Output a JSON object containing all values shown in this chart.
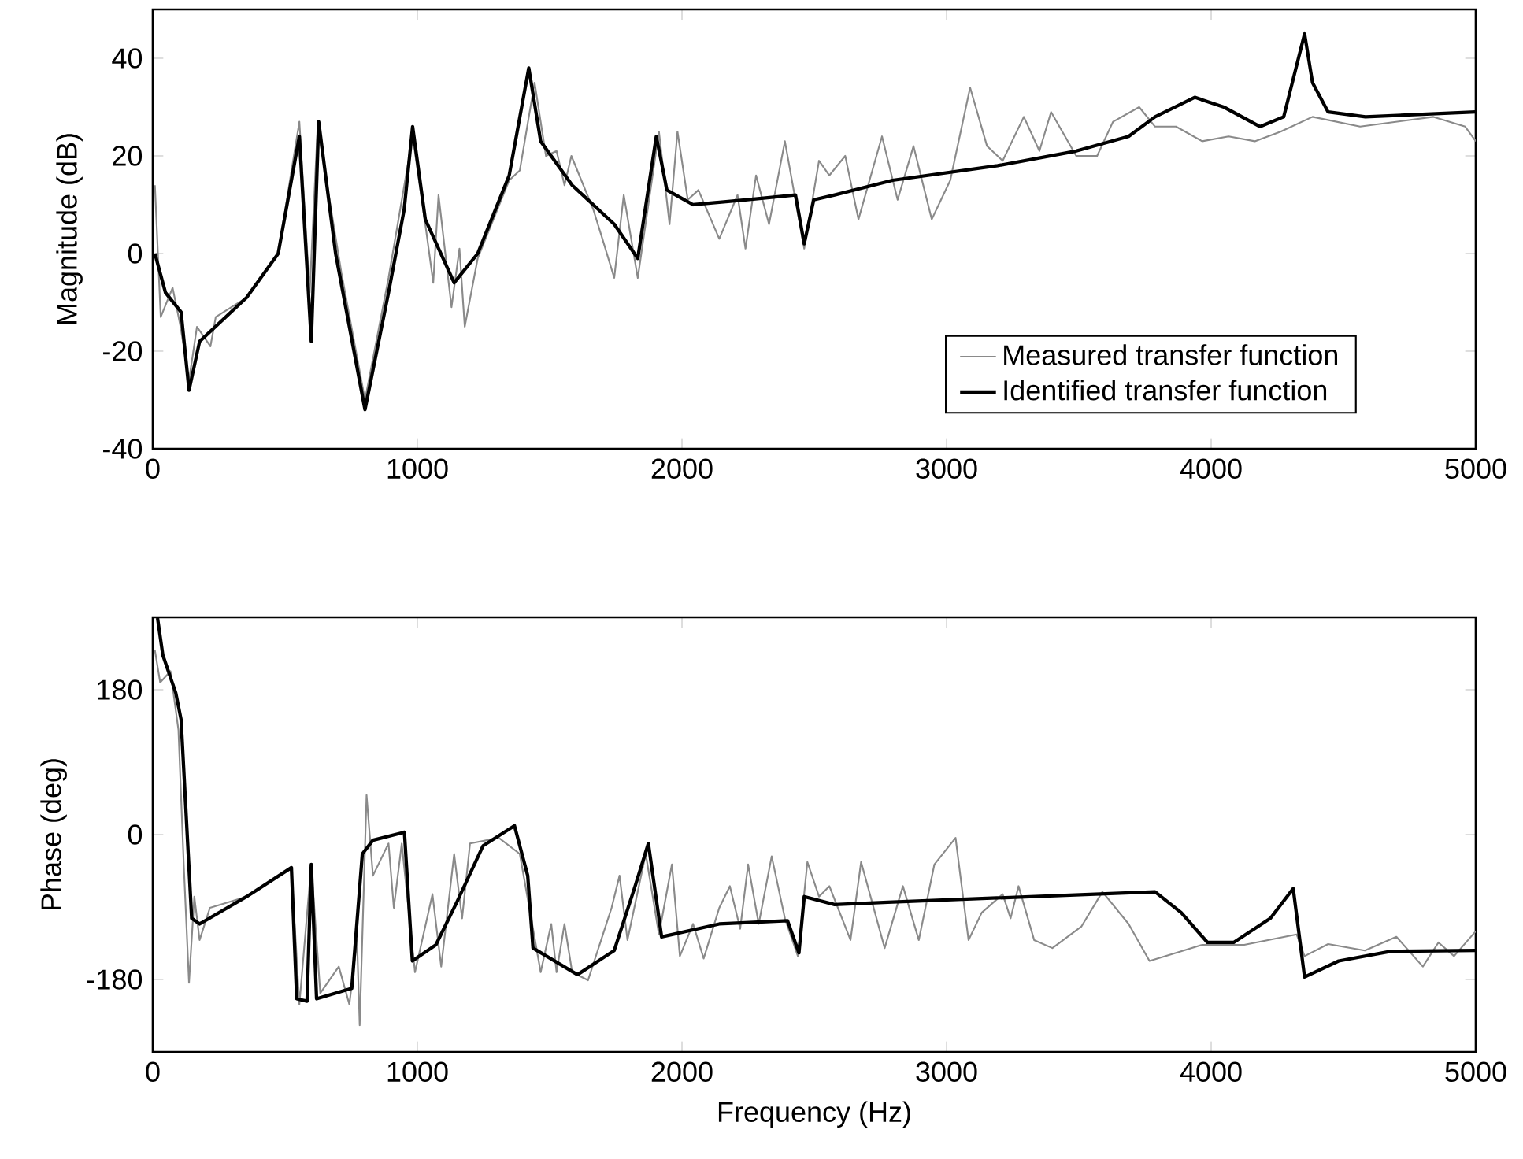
{
  "chart_data": [
    {
      "type": "line",
      "ylabel": "Magnitude (dB)",
      "xlim": [
        0,
        5000
      ],
      "ylim": [
        -40,
        50
      ],
      "xticks": [
        0,
        1000,
        2000,
        3000,
        4000,
        5000
      ],
      "yticks": [
        -40,
        -20,
        0,
        20,
        40
      ],
      "grid": false,
      "legend": "bottom right",
      "series": [
        {
          "name": "Measured transfer function",
          "color": "#8a8a8a",
          "x": [
            8,
            30,
            75,
            105,
            137,
            167,
            218,
            238,
            355,
            474,
            554,
            593,
            623,
            713,
            802,
            891,
            982,
            1030,
            1060,
            1080,
            1129,
            1159,
            1179,
            1228,
            1347,
            1387,
            1443,
            1486,
            1526,
            1556,
            1582,
            1665,
            1705,
            1744,
            1780,
            1833,
            1913,
            1953,
            1983,
            2022,
            2062,
            2141,
            2210,
            2240,
            2280,
            2329,
            2389,
            2462,
            2518,
            2557,
            2617,
            2667,
            2756,
            2815,
            2875,
            2944,
            3014,
            3089,
            3153,
            3212,
            3292,
            3351,
            3395,
            3490,
            3569,
            3629,
            3728,
            3788,
            3867,
            3966,
            4066,
            4165,
            4264,
            4383,
            4563,
            4840,
            4960,
            5000
          ],
          "values": [
            14,
            -13,
            -7,
            -15,
            -26,
            -15,
            -19,
            -13,
            -9,
            0,
            27,
            -8,
            26,
            -4,
            -30,
            -5,
            24,
            6,
            -6,
            12,
            -11,
            1,
            -15,
            -1,
            15,
            17,
            35,
            20,
            21,
            14,
            20,
            9,
            2,
            -5,
            12,
            -5,
            25,
            6,
            25,
            11,
            13,
            3,
            12,
            1,
            16,
            6,
            23,
            1,
            19,
            16,
            20,
            7,
            24,
            11,
            22,
            7,
            15,
            34,
            22,
            19,
            28,
            21,
            29,
            20,
            20,
            27,
            30,
            26,
            26,
            23,
            24,
            23,
            25,
            28,
            26,
            28,
            26,
            23
          ]
        },
        {
          "name": "Identified transfer function",
          "color": "#000000",
          "x": [
            8,
            48,
            107,
            137,
            177,
            355,
            474,
            554,
            599,
            627,
            691,
            802,
            891,
            950,
            982,
            1030,
            1139,
            1228,
            1347,
            1421,
            1466,
            1585,
            1744,
            1833,
            1903,
            1943,
            2042,
            2240,
            2429,
            2462,
            2498,
            2577,
            2796,
            3193,
            3490,
            3688,
            3788,
            3938,
            4048,
            4185,
            4274,
            4353,
            4383,
            4442,
            4583,
            5000
          ],
          "values": [
            0,
            -8,
            -12,
            -28,
            -18,
            -9,
            0,
            24,
            -18,
            27,
            0,
            -32,
            -8,
            9,
            26,
            7,
            -6,
            0,
            16,
            38,
            23,
            14,
            6,
            -1,
            24,
            13,
            10,
            11,
            12,
            2,
            11,
            12,
            15,
            18,
            21,
            24,
            28,
            32,
            30,
            26,
            28,
            45,
            35,
            29,
            28,
            29
          ]
        }
      ]
    },
    {
      "type": "line",
      "xlabel": "Frequency (Hz)",
      "ylabel": "Phase (deg)",
      "xlim": [
        0,
        5000
      ],
      "ylim": [
        -270,
        270
      ],
      "xticks": [
        0,
        1000,
        2000,
        3000,
        4000,
        5000
      ],
      "yticks": [
        -180,
        0,
        180
      ],
      "grid": false,
      "series": [
        {
          "color": "#8a8a8a",
          "x": [
            8,
            28,
            67,
            97,
            117,
            137,
            157,
            177,
            216,
            355,
            524,
            554,
            599,
            633,
            703,
            743,
            772,
            782,
            808,
            832,
            891,
            911,
            941,
            991,
            1057,
            1090,
            1139,
            1169,
            1199,
            1308,
            1387,
            1466,
            1506,
            1526,
            1556,
            1585,
            1645,
            1734,
            1764,
            1794,
            1863,
            1913,
            1962,
            1992,
            2042,
            2082,
            2141,
            2181,
            2220,
            2250,
            2290,
            2339,
            2389,
            2438,
            2474,
            2518,
            2557,
            2637,
            2677,
            2766,
            2835,
            2895,
            2954,
            3034,
            3083,
            3133,
            3212,
            3242,
            3272,
            3331,
            3400,
            3510,
            3589,
            3688,
            3767,
            3867,
            3966,
            4125,
            4323,
            4353,
            4442,
            4581,
            4700,
            4800,
            4859,
            4918,
            5000
          ],
          "values": [
            229,
            189,
            203,
            130,
            -37,
            -184,
            -77,
            -131,
            -91,
            -77,
            -41,
            -211,
            -37,
            -197,
            -164,
            -211,
            -131,
            -237,
            49,
            -51,
            -11,
            -91,
            -11,
            -171,
            -74,
            -164,
            -24,
            -104,
            -11,
            -4,
            -24,
            -171,
            -111,
            -171,
            -111,
            -171,
            -181,
            -91,
            -51,
            -131,
            -24,
            -124,
            -37,
            -151,
            -111,
            -154,
            -91,
            -64,
            -117,
            -37,
            -111,
            -27,
            -104,
            -151,
            -34,
            -77,
            -64,
            -131,
            -34,
            -141,
            -64,
            -131,
            -37,
            -4,
            -131,
            -97,
            -74,
            -104,
            -64,
            -131,
            -141,
            -114,
            -71,
            -111,
            -157,
            -147,
            -137,
            -137,
            -124,
            -151,
            -136,
            -144,
            -127,
            -164,
            -134,
            -151,
            -120
          ]
        },
        {
          "color": "#000000",
          "x": [
            18,
            38,
            87,
            107,
            147,
            177,
            355,
            524,
            544,
            583,
            599,
            619,
            752,
            792,
            832,
            951,
            981,
            1070,
            1149,
            1248,
            1367,
            1417,
            1437,
            1605,
            1744,
            1823,
            1873,
            1923,
            2141,
            2399,
            2442,
            2462,
            2577,
            2778,
            3788,
            3887,
            3986,
            4085,
            4224,
            4310,
            4353,
            4482,
            4681,
            5000
          ],
          "values": [
            269,
            223,
            176,
            143,
            -104,
            -111,
            -77,
            -41,
            -204,
            -207,
            -37,
            -204,
            -191,
            -24,
            -7,
            3,
            -157,
            -137,
            -84,
            -14,
            11,
            -51,
            -141,
            -174,
            -144,
            -64,
            -11,
            -127,
            -111,
            -107,
            -147,
            -77,
            -87,
            -84,
            -71,
            -97,
            -134,
            -134,
            -104,
            -67,
            -177,
            -157,
            -145,
            -144
          ]
        }
      ]
    }
  ]
}
